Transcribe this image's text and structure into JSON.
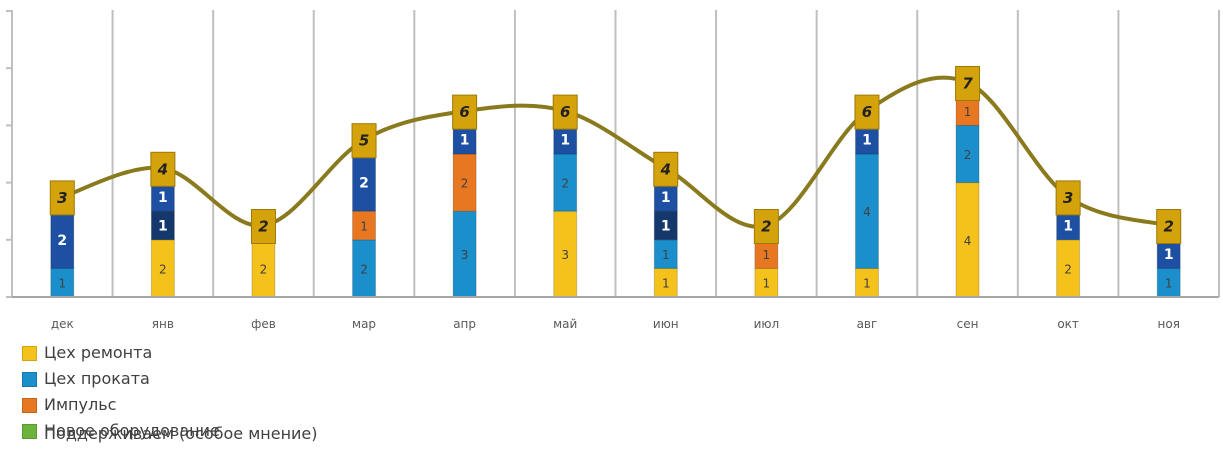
{
  "chart_data": {
    "type": "bar",
    "stacked": true,
    "categories": [
      "дек",
      "янв",
      "фев",
      "мар",
      "апр",
      "май",
      "июн",
      "июл",
      "авг",
      "сен",
      "окт",
      "ноя"
    ],
    "ylim": [
      0,
      10
    ],
    "grid": "vertical",
    "legend_position": "bottom-left",
    "series": [
      {
        "name": "Цех ремонта",
        "color": "#F5C21B",
        "values": [
          0,
          2,
          2,
          0,
          0,
          3,
          1,
          1,
          1,
          4,
          2,
          0
        ]
      },
      {
        "name": "Цех проката",
        "color": "#1B8FCB",
        "values": [
          1,
          0,
          0,
          2,
          3,
          2,
          1,
          0,
          4,
          2,
          0,
          1
        ]
      },
      {
        "name": "Импульс",
        "color": "#E87722",
        "values": [
          0,
          0,
          0,
          1,
          2,
          0,
          0,
          1,
          0,
          1,
          0,
          0
        ]
      },
      {
        "name": "Новое оборудование",
        "color": "#6BB33A",
        "values": [
          0,
          0,
          0,
          0,
          0,
          0,
          0,
          0,
          0,
          0,
          0,
          0
        ]
      },
      {
        "name": "",
        "color": "#14386B",
        "values": [
          0,
          1,
          0,
          0,
          0,
          0,
          1,
          0,
          0,
          0,
          0,
          0
        ]
      },
      {
        "name": "",
        "color": "#1D4FA3",
        "values": [
          2,
          1,
          0,
          2,
          1,
          1,
          1,
          0,
          1,
          0,
          1,
          1
        ]
      }
    ],
    "totals_line": {
      "color": "#8A7A1E",
      "values": [
        3,
        4,
        2,
        5,
        6,
        6,
        4,
        2,
        6,
        7,
        3,
        2
      ]
    },
    "total_label_fill": "#D4A20B",
    "legend_overlap_text": "Поддерживаем (особое мнение)"
  }
}
